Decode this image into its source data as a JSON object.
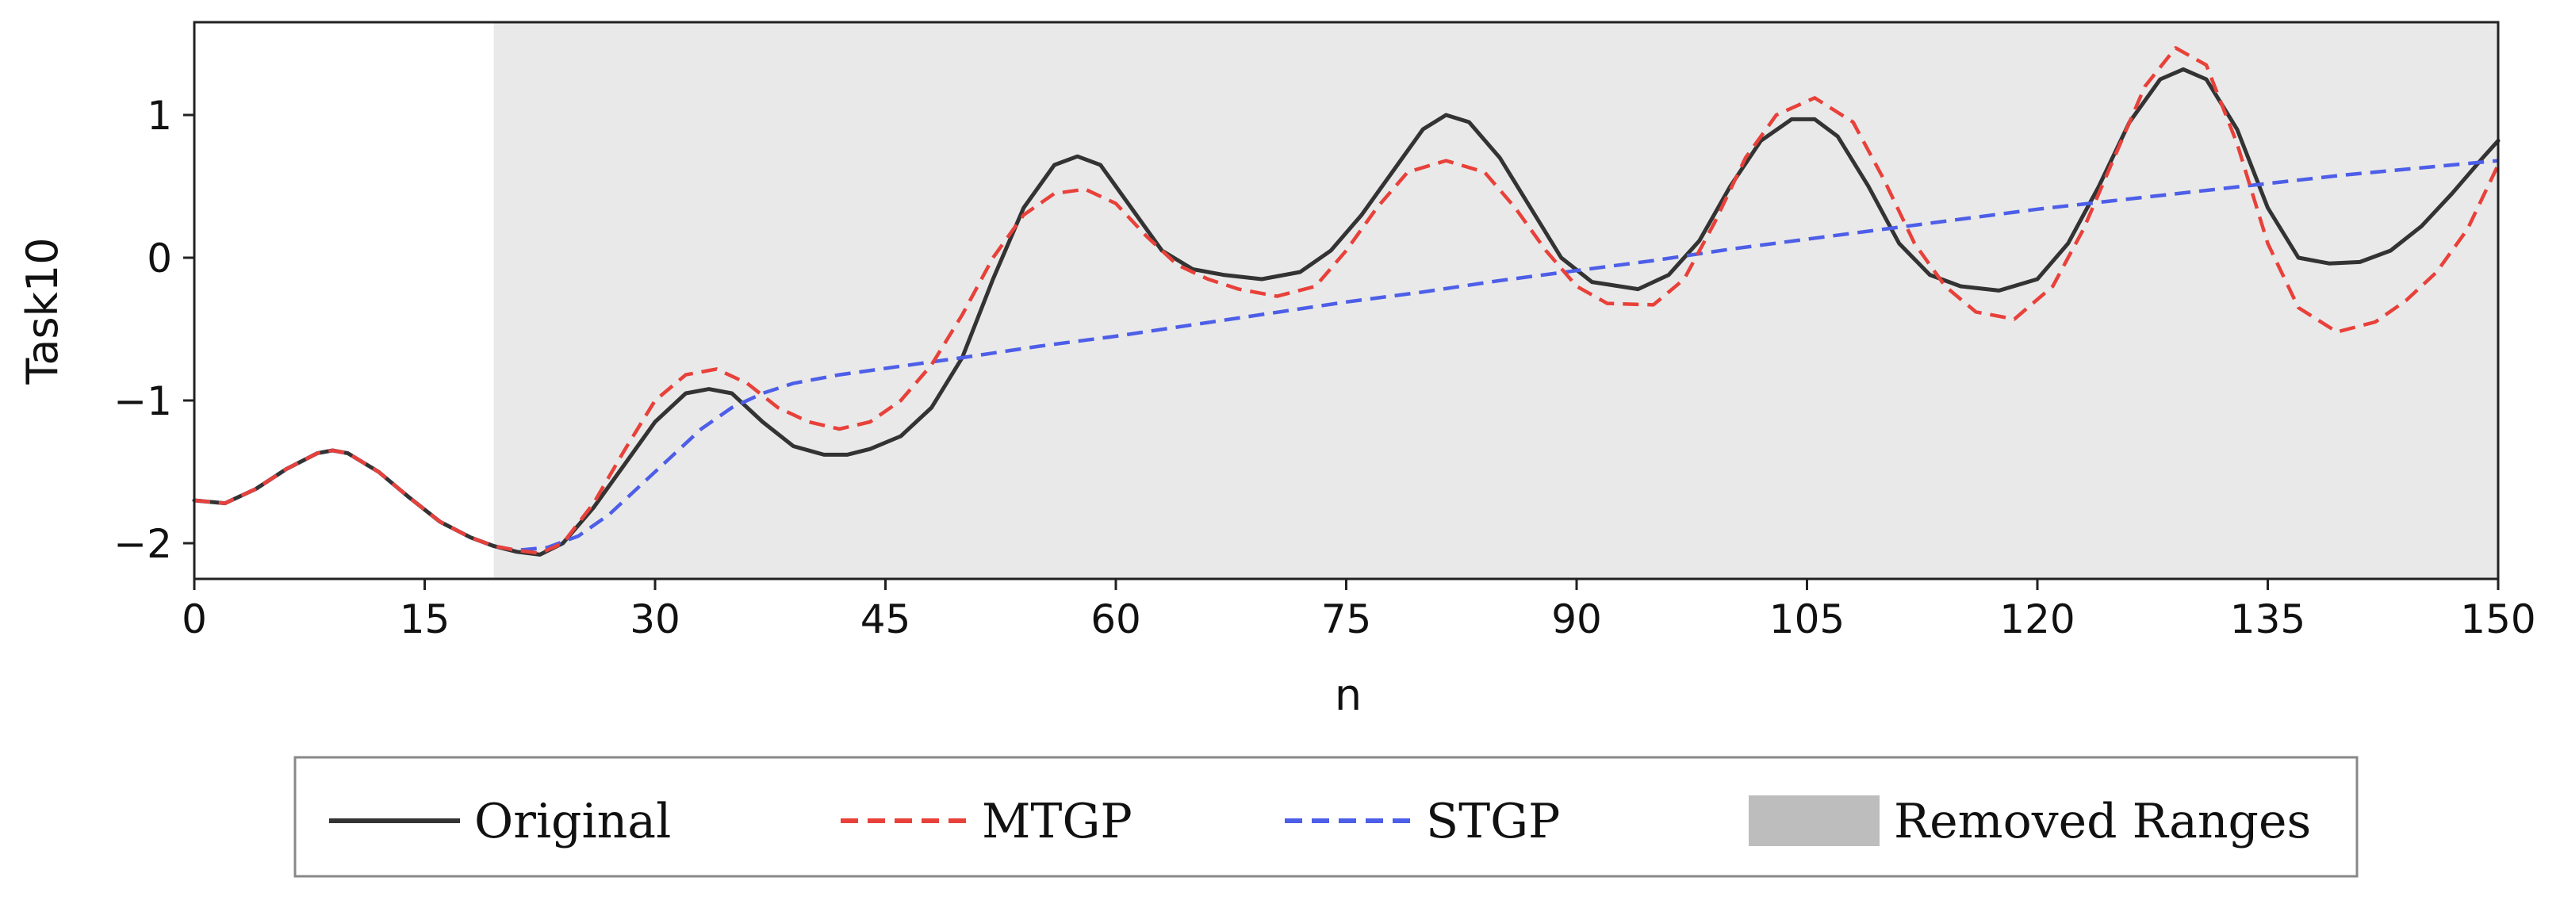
{
  "chart_data": {
    "type": "line",
    "title": "",
    "xlabel": "n",
    "ylabel": "Task10",
    "xlim": [
      0,
      150
    ],
    "ylim": [
      -2.25,
      1.65
    ],
    "xticks": [
      0,
      15,
      30,
      45,
      60,
      75,
      90,
      105,
      120,
      135,
      150
    ],
    "yticks": [
      1,
      0,
      -1,
      -2
    ],
    "ytick_labels": [
      "1",
      "0",
      "−1",
      "−2"
    ],
    "grid": false,
    "legend_position": "bottom-center",
    "removed_range": {
      "label": "Removed Ranges",
      "start": 19.5,
      "end": 150,
      "color": "#e9e9e9",
      "legend_color": "#bdbdbd"
    },
    "series": [
      {
        "name": "Original",
        "color": "#333333",
        "style": "solid",
        "x": [
          0,
          2,
          4,
          6,
          8,
          9,
          10,
          12,
          14,
          16,
          18,
          19.5,
          21,
          22.5,
          24,
          26,
          28,
          30,
          32,
          33.5,
          35,
          37,
          39,
          41,
          42.5,
          44,
          46,
          48,
          50,
          52,
          54,
          56,
          57.5,
          59,
          61,
          63,
          65,
          67,
          69.5,
          72,
          74,
          76,
          78,
          80,
          81.5,
          83,
          85,
          87,
          89,
          91,
          94,
          96,
          98,
          100,
          102,
          104,
          105.5,
          107,
          109,
          111,
          113,
          115,
          117.5,
          120,
          122,
          124,
          126,
          128,
          129.5,
          131,
          133,
          135,
          137,
          139,
          141,
          143,
          145,
          147,
          149,
          150
        ],
        "y": [
          -1.7,
          -1.72,
          -1.62,
          -1.48,
          -1.37,
          -1.35,
          -1.37,
          -1.5,
          -1.68,
          -1.85,
          -1.96,
          -2.02,
          -2.06,
          -2.08,
          -2.0,
          -1.75,
          -1.45,
          -1.15,
          -0.95,
          -0.92,
          -0.95,
          -1.15,
          -1.32,
          -1.38,
          -1.38,
          -1.34,
          -1.25,
          -1.05,
          -0.7,
          -0.15,
          0.35,
          0.65,
          0.71,
          0.65,
          0.35,
          0.05,
          -0.08,
          -0.12,
          -0.15,
          -0.1,
          0.05,
          0.3,
          0.6,
          0.9,
          1.0,
          0.95,
          0.7,
          0.35,
          0.0,
          -0.17,
          -0.22,
          -0.12,
          0.12,
          0.5,
          0.82,
          0.97,
          0.97,
          0.85,
          0.5,
          0.1,
          -0.12,
          -0.2,
          -0.23,
          -0.15,
          0.1,
          0.5,
          0.95,
          1.25,
          1.32,
          1.25,
          0.9,
          0.35,
          0.0,
          -0.04,
          -0.03,
          0.05,
          0.22,
          0.45,
          0.7,
          0.82
        ]
      },
      {
        "name": "MTGP",
        "color": "#e8413a",
        "style": "dashed",
        "x": [
          0,
          2,
          4,
          6,
          8,
          9,
          10,
          12,
          14,
          16,
          18,
          19.5,
          21,
          22.5,
          24,
          26,
          28,
          30,
          32,
          34,
          36,
          38,
          40,
          42,
          44,
          46,
          48,
          50,
          52,
          54,
          56,
          58,
          60,
          62,
          64,
          66,
          68,
          70.5,
          73,
          75,
          77,
          79,
          81.5,
          84,
          86,
          88,
          90,
          92,
          95,
          97,
          99,
          101,
          103,
          105.5,
          108,
          110,
          112,
          114,
          116,
          118.5,
          121,
          123,
          125,
          127,
          129,
          131,
          133,
          135,
          137,
          139.5,
          142,
          144,
          146,
          148,
          150
        ],
        "y": [
          -1.7,
          -1.72,
          -1.62,
          -1.48,
          -1.37,
          -1.35,
          -1.37,
          -1.5,
          -1.68,
          -1.85,
          -1.96,
          -2.02,
          -2.05,
          -2.07,
          -2.0,
          -1.72,
          -1.35,
          -1.0,
          -0.82,
          -0.78,
          -0.88,
          -1.05,
          -1.15,
          -1.2,
          -1.15,
          -1.0,
          -0.75,
          -0.4,
          0.0,
          0.3,
          0.45,
          0.48,
          0.38,
          0.15,
          -0.05,
          -0.15,
          -0.22,
          -0.27,
          -0.2,
          0.05,
          0.35,
          0.6,
          0.68,
          0.6,
          0.35,
          0.05,
          -0.2,
          -0.32,
          -0.33,
          -0.15,
          0.25,
          0.7,
          1.0,
          1.12,
          0.95,
          0.55,
          0.1,
          -0.2,
          -0.38,
          -0.43,
          -0.2,
          0.2,
          0.7,
          1.2,
          1.47,
          1.35,
          0.8,
          0.1,
          -0.35,
          -0.52,
          -0.45,
          -0.3,
          -0.1,
          0.2,
          0.65
        ]
      },
      {
        "name": "STGP",
        "color": "#4d5ee8",
        "style": "dashed",
        "x": [
          0,
          2,
          4,
          6,
          8,
          9,
          10,
          12,
          14,
          16,
          18,
          19.5,
          21,
          23,
          25,
          27,
          29,
          31,
          33,
          35,
          37,
          39,
          42,
          46,
          50,
          55,
          60,
          65,
          70,
          75,
          80,
          85,
          90,
          95,
          100,
          105,
          110,
          115,
          120,
          125,
          130,
          135,
          140,
          145,
          150
        ],
        "y": [
          -1.7,
          -1.72,
          -1.62,
          -1.48,
          -1.37,
          -1.35,
          -1.37,
          -1.5,
          -1.68,
          -1.85,
          -1.96,
          -2.02,
          -2.05,
          -2.03,
          -1.95,
          -1.8,
          -1.6,
          -1.4,
          -1.2,
          -1.05,
          -0.95,
          -0.88,
          -0.82,
          -0.76,
          -0.7,
          -0.62,
          -0.55,
          -0.47,
          -0.39,
          -0.31,
          -0.24,
          -0.16,
          -0.09,
          -0.02,
          0.06,
          0.13,
          0.2,
          0.27,
          0.34,
          0.4,
          0.46,
          0.52,
          0.58,
          0.63,
          0.68
        ]
      }
    ]
  }
}
